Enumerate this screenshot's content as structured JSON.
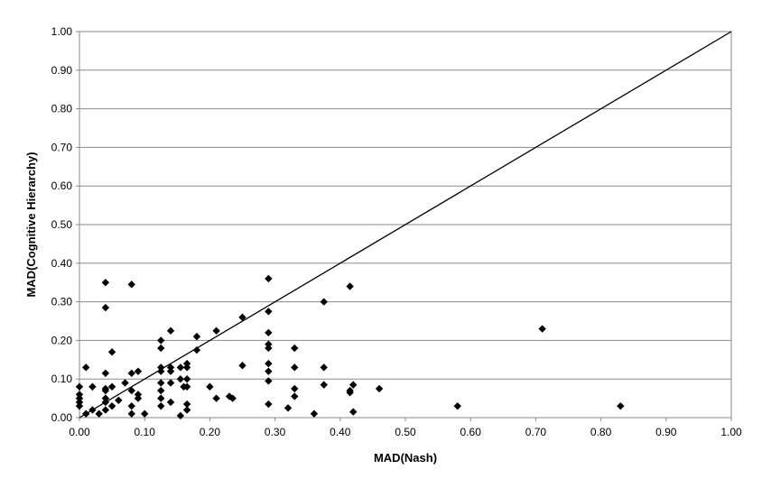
{
  "chart_data": {
    "type": "scatter",
    "xlabel": "MAD(Nash)",
    "ylabel": "MAD(Cognitive Hierarchy)",
    "xlim": [
      0,
      1
    ],
    "ylim": [
      0,
      1
    ],
    "xticks": [
      "0.00",
      "0.10",
      "0.20",
      "0.30",
      "0.40",
      "0.50",
      "0.60",
      "0.70",
      "0.80",
      "0.90",
      "1.00"
    ],
    "yticks": [
      "0.00",
      "0.10",
      "0.20",
      "0.30",
      "0.40",
      "0.50",
      "0.60",
      "0.70",
      "0.80",
      "0.90",
      "1.00"
    ],
    "grid": "horizontal",
    "marker": "diamond",
    "marker_color": "#000000",
    "reference_line": {
      "from": [
        0,
        0
      ],
      "to": [
        1,
        1
      ]
    },
    "points": [
      [
        0.0,
        0.08
      ],
      [
        0.0,
        0.06
      ],
      [
        0.0,
        0.05
      ],
      [
        0.0,
        0.04
      ],
      [
        0.0,
        0.03
      ],
      [
        0.01,
        0.13
      ],
      [
        0.01,
        0.01
      ],
      [
        0.02,
        0.08
      ],
      [
        0.02,
        0.02
      ],
      [
        0.03,
        0.01
      ],
      [
        0.04,
        0.02
      ],
      [
        0.04,
        0.35
      ],
      [
        0.04,
        0.285
      ],
      [
        0.04,
        0.115
      ],
      [
        0.04,
        0.075
      ],
      [
        0.04,
        0.07
      ],
      [
        0.04,
        0.05
      ],
      [
        0.04,
        0.04
      ],
      [
        0.05,
        0.17
      ],
      [
        0.05,
        0.08
      ],
      [
        0.05,
        0.03
      ],
      [
        0.06,
        0.045
      ],
      [
        0.07,
        0.09
      ],
      [
        0.08,
        0.115
      ],
      [
        0.08,
        0.345
      ],
      [
        0.08,
        0.07
      ],
      [
        0.08,
        0.03
      ],
      [
        0.08,
        0.01
      ],
      [
        0.09,
        0.12
      ],
      [
        0.09,
        0.06
      ],
      [
        0.09,
        0.05
      ],
      [
        0.1,
        0.01
      ],
      [
        0.125,
        0.2
      ],
      [
        0.125,
        0.18
      ],
      [
        0.125,
        0.13
      ],
      [
        0.125,
        0.12
      ],
      [
        0.125,
        0.09
      ],
      [
        0.125,
        0.07
      ],
      [
        0.125,
        0.05
      ],
      [
        0.125,
        0.03
      ],
      [
        0.14,
        0.225
      ],
      [
        0.14,
        0.13
      ],
      [
        0.14,
        0.12
      ],
      [
        0.14,
        0.09
      ],
      [
        0.14,
        0.04
      ],
      [
        0.155,
        0.13
      ],
      [
        0.155,
        0.1
      ],
      [
        0.155,
        0.005
      ],
      [
        0.16,
        0.08
      ],
      [
        0.165,
        0.14
      ],
      [
        0.165,
        0.13
      ],
      [
        0.165,
        0.1
      ],
      [
        0.165,
        0.08
      ],
      [
        0.165,
        0.035
      ],
      [
        0.165,
        0.02
      ],
      [
        0.18,
        0.21
      ],
      [
        0.18,
        0.175
      ],
      [
        0.2,
        0.08
      ],
      [
        0.21,
        0.225
      ],
      [
        0.21,
        0.05
      ],
      [
        0.23,
        0.055
      ],
      [
        0.235,
        0.05
      ],
      [
        0.25,
        0.26
      ],
      [
        0.25,
        0.135
      ],
      [
        0.29,
        0.36
      ],
      [
        0.29,
        0.275
      ],
      [
        0.29,
        0.22
      ],
      [
        0.29,
        0.19
      ],
      [
        0.29,
        0.18
      ],
      [
        0.29,
        0.14
      ],
      [
        0.29,
        0.12
      ],
      [
        0.29,
        0.095
      ],
      [
        0.29,
        0.035
      ],
      [
        0.32,
        0.025
      ],
      [
        0.33,
        0.18
      ],
      [
        0.33,
        0.13
      ],
      [
        0.33,
        0.075
      ],
      [
        0.33,
        0.055
      ],
      [
        0.36,
        0.01
      ],
      [
        0.375,
        0.3
      ],
      [
        0.375,
        0.13
      ],
      [
        0.375,
        0.085
      ],
      [
        0.415,
        0.34
      ],
      [
        0.415,
        0.07
      ],
      [
        0.415,
        0.065
      ],
      [
        0.42,
        0.085
      ],
      [
        0.42,
        0.015
      ],
      [
        0.46,
        0.075
      ],
      [
        0.58,
        0.03
      ],
      [
        0.71,
        0.23
      ],
      [
        0.83,
        0.03
      ]
    ]
  }
}
